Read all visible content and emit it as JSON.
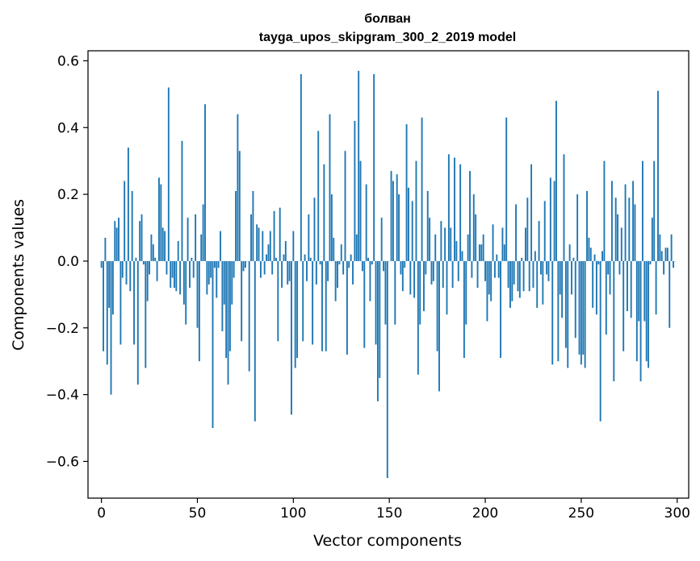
{
  "chart_data": {
    "type": "bar",
    "title_line1": "болван",
    "title_line2": "tayga_upos_skipgram_300_2_2019 model",
    "xlabel": "Vector components",
    "ylabel": "Components values",
    "xlim": [
      -7,
      306
    ],
    "ylim": [
      -0.71,
      0.63
    ],
    "xticks": [
      0,
      50,
      100,
      150,
      200,
      250,
      300
    ],
    "yticks": [
      -0.6,
      -0.4,
      -0.2,
      0.0,
      0.2,
      0.4,
      0.6
    ],
    "ytick_labels": [
      "−0.6",
      "−0.4",
      "−0.2",
      "0.0",
      "0.2",
      "0.4",
      "0.6"
    ],
    "bar_color": "#1f77b4",
    "values": [
      -0.02,
      -0.27,
      0.07,
      -0.31,
      -0.14,
      -0.4,
      -0.16,
      0.12,
      0.1,
      0.13,
      -0.25,
      -0.05,
      0.24,
      -0.07,
      0.34,
      -0.09,
      0.21,
      -0.25,
      0.01,
      -0.37,
      0.12,
      0.14,
      -0.01,
      -0.32,
      -0.12,
      -0.04,
      0.08,
      0.05,
      0.01,
      -0.06,
      0.25,
      0.23,
      0.1,
      0.09,
      -0.04,
      0.52,
      -0.08,
      -0.05,
      -0.08,
      -0.09,
      0.06,
      -0.1,
      0.36,
      -0.13,
      -0.19,
      0.13,
      -0.08,
      0.01,
      -0.05,
      0.14,
      -0.2,
      -0.3,
      0.08,
      0.17,
      0.47,
      -0.1,
      -0.07,
      -0.05,
      -0.5,
      -0.02,
      -0.11,
      -0.02,
      0.09,
      -0.21,
      -0.13,
      -0.29,
      -0.37,
      -0.27,
      -0.13,
      -0.05,
      0.21,
      0.44,
      0.33,
      -0.24,
      -0.03,
      -0.02,
      0.0,
      -0.33,
      0.14,
      0.21,
      -0.48,
      0.11,
      0.1,
      -0.05,
      0.09,
      -0.04,
      0.02,
      0.05,
      0.09,
      -0.04,
      0.15,
      0.01,
      -0.24,
      0.16,
      -0.08,
      0.02,
      0.06,
      -0.07,
      -0.06,
      -0.46,
      0.09,
      -0.32,
      -0.29,
      0.0,
      0.56,
      -0.24,
      0.02,
      -0.06,
      0.14,
      0.01,
      -0.25,
      0.19,
      -0.07,
      0.39,
      -0.01,
      -0.27,
      0.29,
      -0.27,
      -0.06,
      0.44,
      0.2,
      0.07,
      -0.12,
      -0.08,
      -0.01,
      0.05,
      -0.04,
      0.33,
      -0.28,
      -0.02,
      0.02,
      -0.07,
      0.42,
      0.08,
      0.57,
      0.3,
      -0.03,
      -0.26,
      0.23,
      0.01,
      -0.12,
      -0.01,
      0.56,
      -0.25,
      -0.42,
      -0.35,
      0.13,
      -0.03,
      -0.19,
      -0.65,
      0.0,
      0.27,
      0.24,
      -0.19,
      0.26,
      0.2,
      -0.04,
      -0.09,
      -0.02,
      0.41,
      0.22,
      -0.1,
      0.18,
      -0.11,
      0.3,
      -0.34,
      -0.19,
      0.43,
      -0.15,
      -0.04,
      0.21,
      0.13,
      -0.07,
      -0.06,
      0.08,
      -0.27,
      -0.39,
      0.12,
      -0.08,
      0.1,
      -0.16,
      0.32,
      0.1,
      -0.08,
      0.31,
      0.06,
      -0.06,
      0.29,
      0.03,
      -0.29,
      -0.19,
      0.08,
      0.27,
      -0.05,
      0.2,
      0.14,
      -0.08,
      0.05,
      0.05,
      0.08,
      -0.06,
      -0.18,
      -0.1,
      -0.12,
      0.11,
      -0.05,
      0.02,
      -0.05,
      -0.29,
      0.1,
      0.05,
      0.43,
      -0.08,
      -0.14,
      -0.12,
      -0.07,
      0.17,
      -0.09,
      -0.11,
      0.01,
      -0.09,
      0.1,
      0.19,
      -0.09,
      0.29,
      -0.08,
      0.03,
      -0.14,
      0.12,
      -0.04,
      -0.13,
      0.18,
      -0.04,
      -0.06,
      0.25,
      -0.31,
      0.24,
      0.48,
      -0.3,
      -0.1,
      -0.17,
      0.32,
      -0.26,
      -0.32,
      0.05,
      -0.1,
      0.01,
      -0.23,
      0.2,
      -0.28,
      -0.31,
      -0.28,
      -0.32,
      0.21,
      0.07,
      0.04,
      -0.14,
      0.02,
      -0.16,
      -0.01,
      -0.48,
      0.03,
      0.3,
      -0.22,
      -0.04,
      -0.1,
      0.24,
      -0.36,
      0.19,
      0.14,
      -0.04,
      0.1,
      -0.27,
      0.23,
      -0.15,
      0.19,
      -0.17,
      0.24,
      0.17,
      -0.3,
      -0.18,
      -0.36,
      0.3,
      -0.18,
      -0.3,
      -0.32,
      -0.01,
      0.13,
      0.3,
      -0.16,
      0.51,
      0.08,
      0.03,
      -0.04,
      0.04,
      0.04,
      -0.2,
      0.08,
      -0.02,
      0.0
    ]
  }
}
